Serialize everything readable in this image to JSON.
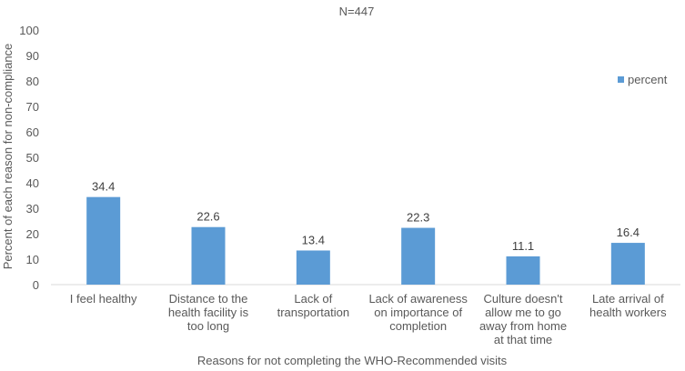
{
  "chart_data": {
    "type": "bar",
    "title": "N=447",
    "xlabel": "Reasons for not completing the WHO-Recommended  visits",
    "ylabel": "Percent of each reason for non-compliance",
    "ylim": [
      0,
      100
    ],
    "yticks": [
      0,
      10,
      20,
      30,
      40,
      50,
      60,
      70,
      80,
      90,
      100
    ],
    "grid": false,
    "legend_position": "top-right",
    "categories": [
      [
        "I feel healthy"
      ],
      [
        "Distance to the",
        "health facility is",
        "too long"
      ],
      [
        "Lack of",
        "transportation"
      ],
      [
        "Lack of awareness",
        "on importance of",
        "completion"
      ],
      [
        "Culture doesn't",
        "allow me to go",
        "away from home",
        "at that time"
      ],
      [
        "Late arrival of",
        "health workers"
      ]
    ],
    "series": [
      {
        "name": "percent",
        "color": "#5b9bd5",
        "values": [
          34.4,
          22.6,
          13.4,
          22.3,
          11.1,
          16.4
        ]
      }
    ]
  }
}
